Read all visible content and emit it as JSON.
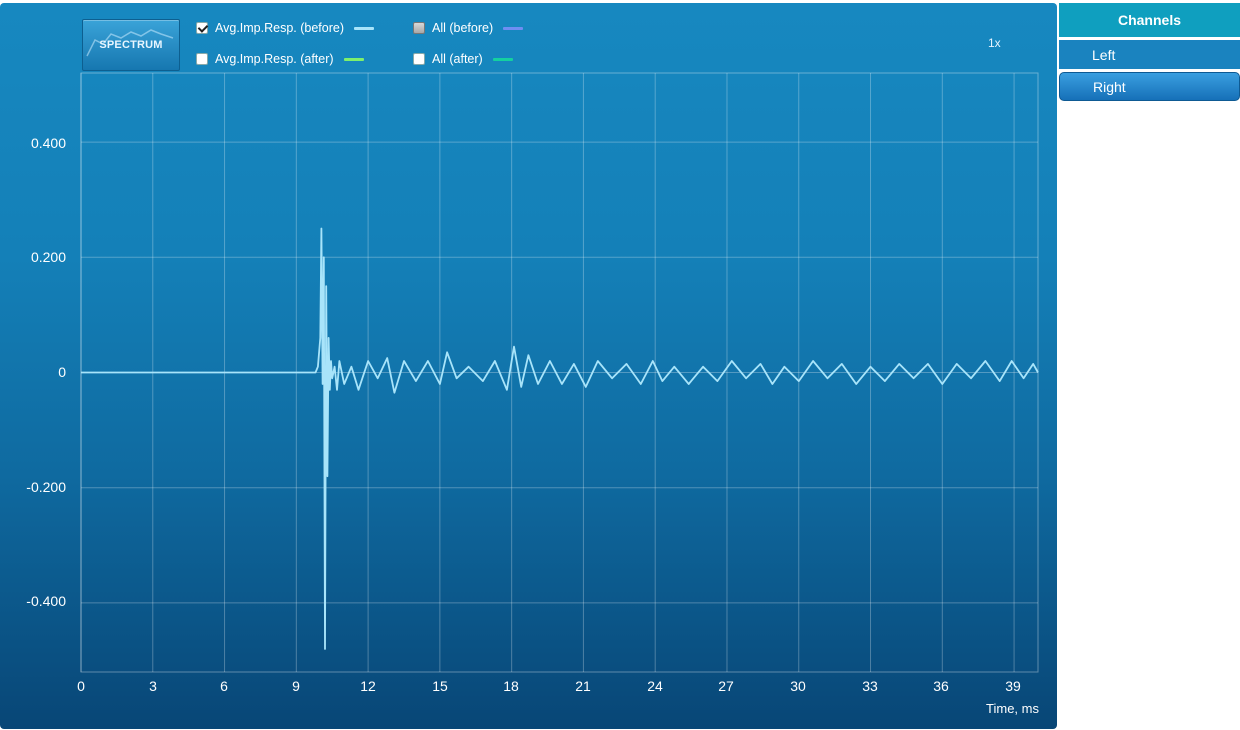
{
  "toolbar": {
    "spectrum_label": "SPECTRUM",
    "zoom_label": "1x"
  },
  "legend": [
    {
      "label": "Avg.Imp.Resp. (before)",
      "checked": true,
      "color": "#a8e4fa"
    },
    {
      "label": "All (before)",
      "checked": false,
      "color": "#6f8ef2"
    },
    {
      "label": "Avg.Imp.Resp. (after)",
      "checked": false,
      "color": "#7ef06c"
    },
    {
      "label": "All (after)",
      "checked": false,
      "color": "#14d0a0"
    }
  ],
  "channels": {
    "header": "Channels",
    "items": [
      {
        "label": "Left",
        "selected": false
      },
      {
        "label": "Right",
        "selected": true
      }
    ]
  },
  "chart_data": {
    "type": "line",
    "title": "",
    "xlabel": "Time, ms",
    "ylabel": "",
    "xlim": [
      0,
      40
    ],
    "ylim": [
      -0.52,
      0.52
    ],
    "grid": true,
    "x_ticks": [
      0,
      3,
      6,
      9,
      12,
      15,
      18,
      21,
      24,
      27,
      30,
      33,
      36,
      39
    ],
    "x_tick_labels": [
      "0",
      "3",
      "6",
      "9",
      "12",
      "15",
      "18",
      "21",
      "24",
      "27",
      "30",
      "33",
      "36",
      "39"
    ],
    "y_ticks": [
      0.4,
      0.2,
      0,
      -0.2,
      -0.4
    ],
    "y_tick_labels": [
      "0.400",
      "0.200",
      "0",
      "-0.200",
      "-0.400"
    ],
    "series": [
      {
        "name": "Avg.Imp.Resp. (before)",
        "color": "#a8e4fa",
        "x": [
          0,
          9.8,
          9.9,
          10.0,
          10.05,
          10.1,
          10.15,
          10.2,
          10.25,
          10.3,
          10.35,
          10.4,
          10.45,
          10.5,
          10.6,
          10.7,
          10.8,
          11.0,
          11.3,
          11.6,
          12.0,
          12.4,
          12.8,
          13.1,
          13.5,
          14.0,
          14.5,
          15.0,
          15.3,
          15.7,
          16.2,
          16.8,
          17.3,
          17.8,
          18.1,
          18.4,
          18.7,
          19.1,
          19.6,
          20.1,
          20.6,
          21.1,
          21.6,
          22.2,
          22.8,
          23.4,
          23.9,
          24.3,
          24.8,
          25.4,
          26.0,
          26.6,
          27.2,
          27.8,
          28.4,
          28.9,
          29.4,
          30.0,
          30.6,
          31.2,
          31.8,
          32.4,
          33.0,
          33.6,
          34.2,
          34.8,
          35.4,
          36.0,
          36.6,
          37.2,
          37.8,
          38.4,
          38.9,
          39.4,
          39.8,
          40.0
        ],
        "y": [
          0,
          0,
          0.01,
          0.06,
          0.25,
          -0.02,
          0.2,
          -0.48,
          0.15,
          -0.18,
          0.06,
          -0.03,
          0.02,
          -0.01,
          0.01,
          -0.03,
          0.02,
          -0.02,
          0.01,
          -0.03,
          0.02,
          -0.01,
          0.025,
          -0.035,
          0.02,
          -0.015,
          0.02,
          -0.02,
          0.035,
          -0.01,
          0.01,
          -0.015,
          0.02,
          -0.03,
          0.045,
          -0.025,
          0.03,
          -0.02,
          0.02,
          -0.02,
          0.015,
          -0.025,
          0.02,
          -0.01,
          0.015,
          -0.02,
          0.02,
          -0.015,
          0.01,
          -0.02,
          0.01,
          -0.015,
          0.02,
          -0.01,
          0.015,
          -0.02,
          0.01,
          -0.015,
          0.02,
          -0.01,
          0.015,
          -0.02,
          0.01,
          -0.015,
          0.015,
          -0.01,
          0.015,
          -0.02,
          0.015,
          -0.01,
          0.02,
          -0.015,
          0.02,
          -0.01,
          0.015,
          0.0
        ]
      }
    ]
  }
}
